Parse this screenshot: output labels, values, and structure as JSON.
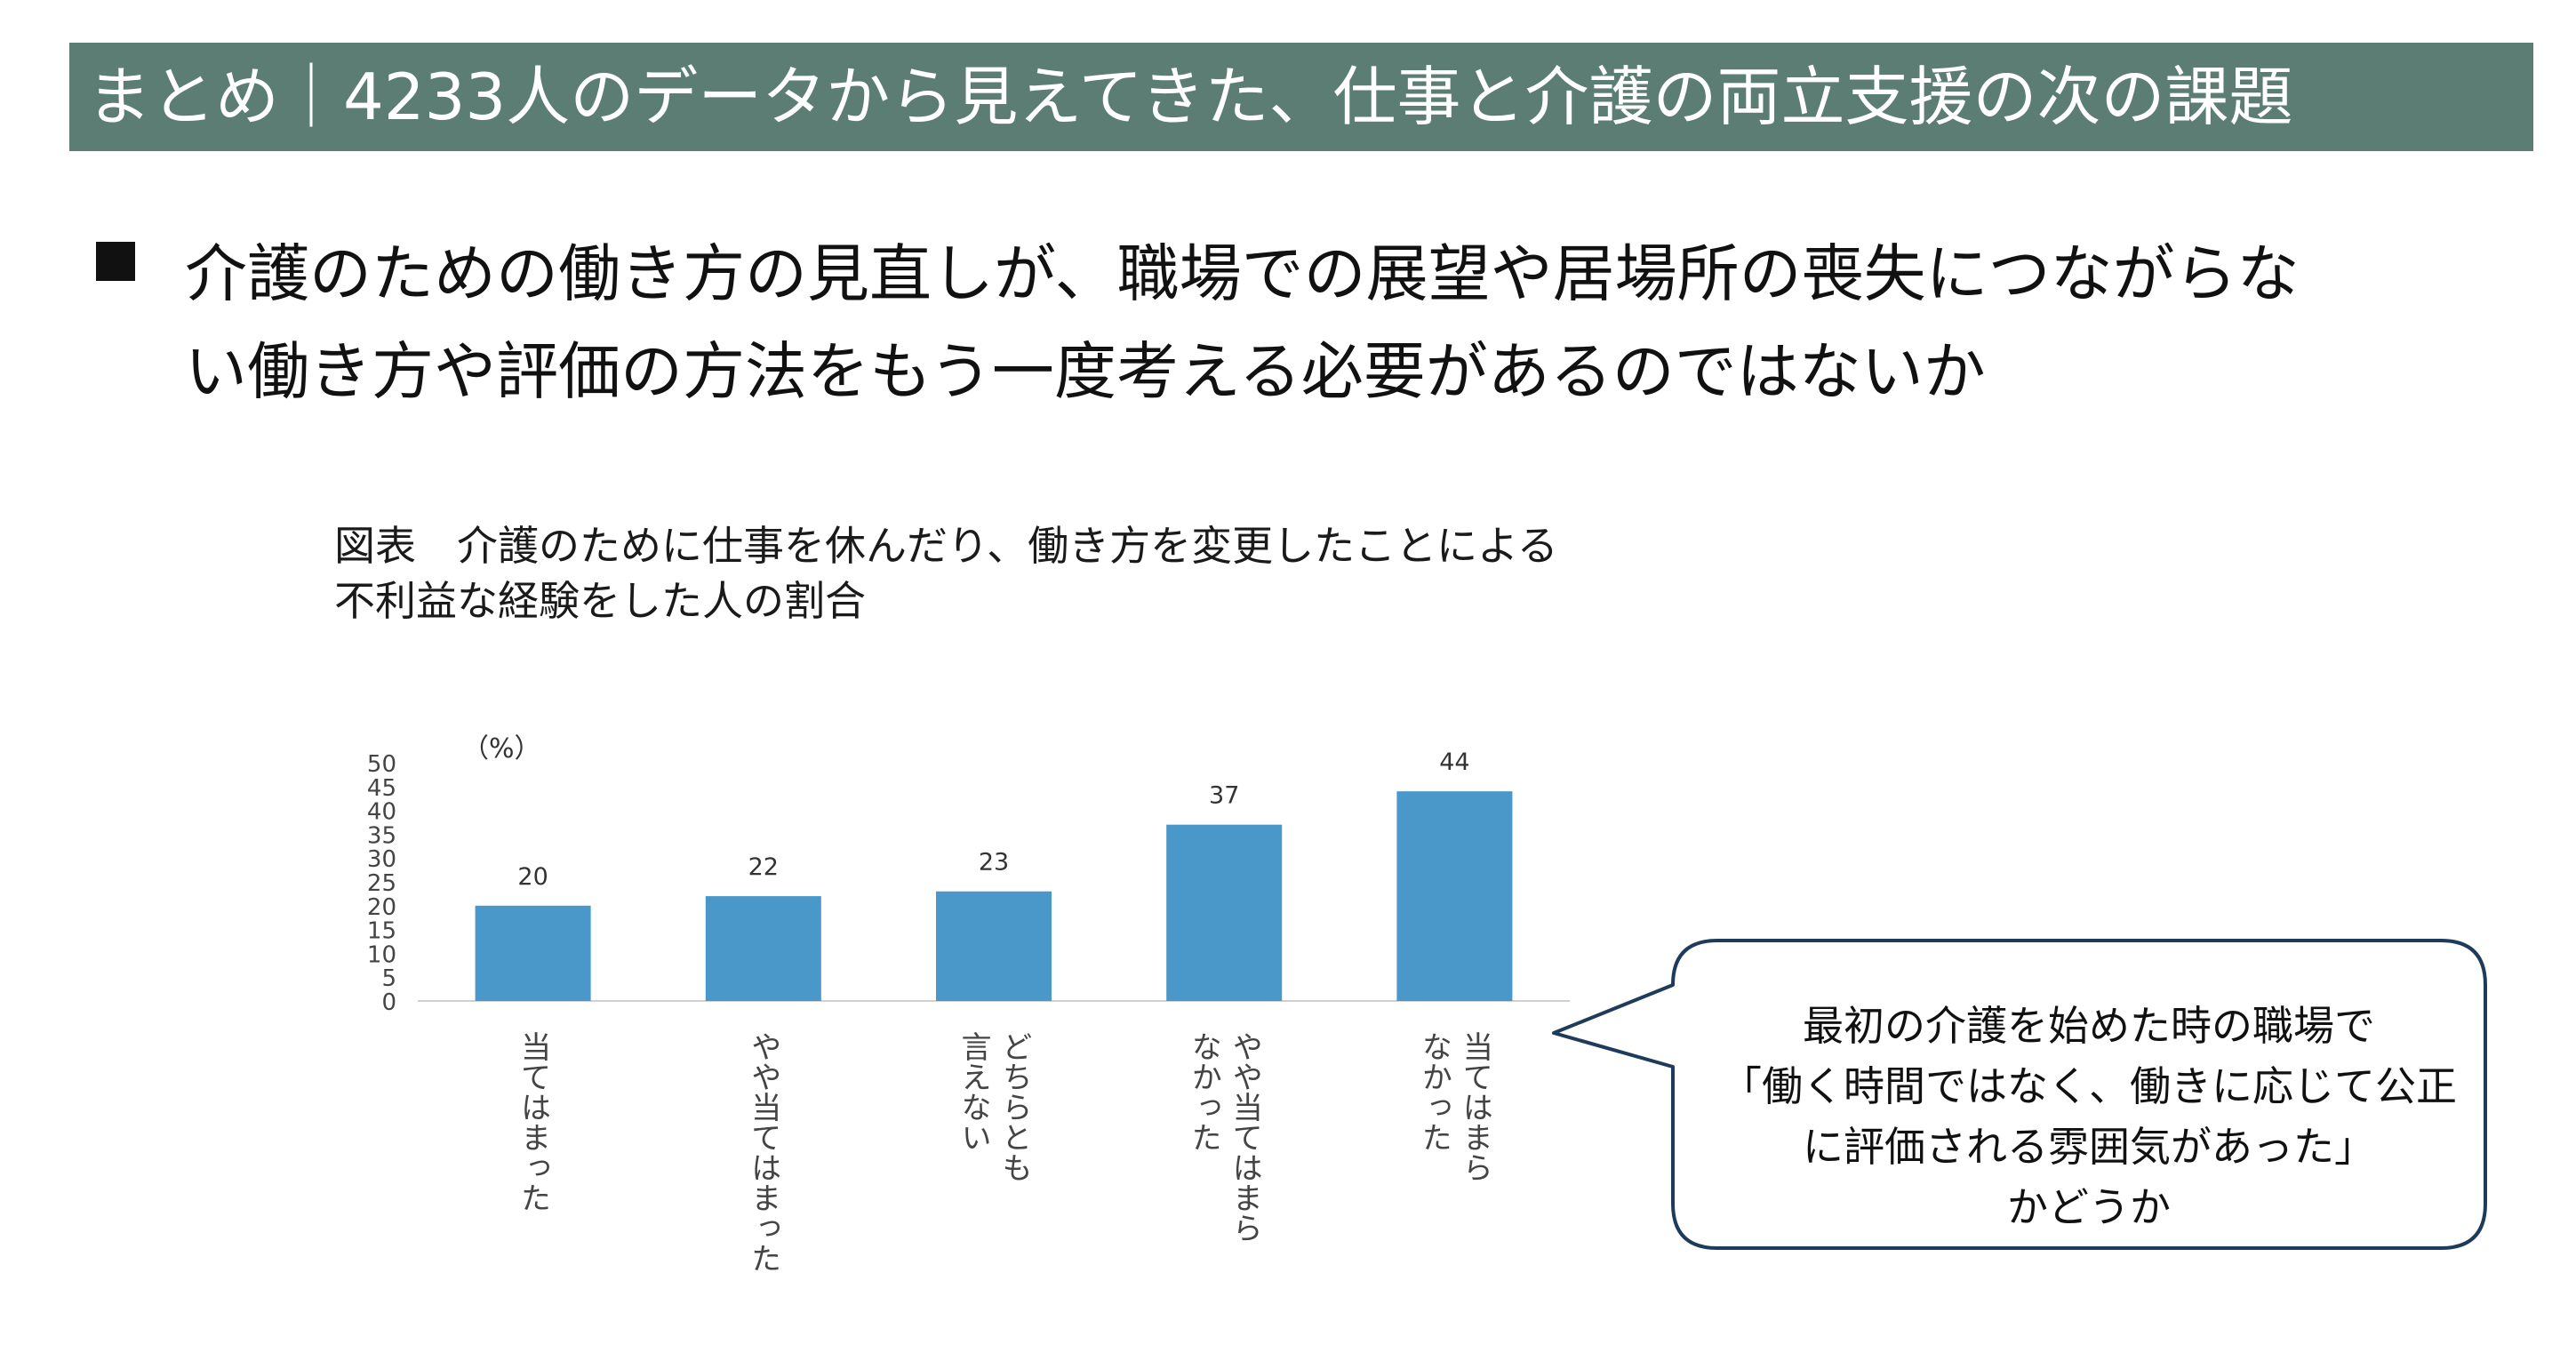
{
  "header": {
    "title": "まとめ｜4233人のデータから見えてきた、仕事と介護の両立支援の次の課題"
  },
  "headline": {
    "line1": "介護のための働き方の見直しが、職場での展望や居場所の喪失につながらな",
    "line2": "い働き方や評価の方法をもう一度考える必要があるのではないか"
  },
  "figure": {
    "title_line1": "図表　介護のために仕事を休んだり、働き方を変更したことによる",
    "title_line2": "不利益な経験をした人の割合"
  },
  "chart_data": {
    "type": "bar",
    "ylabel": "（%）",
    "ylim": [
      0,
      50
    ],
    "yticks": [
      0,
      5,
      10,
      15,
      20,
      25,
      30,
      35,
      40,
      45,
      50
    ],
    "categories": [
      [
        "当てはまった"
      ],
      [
        "やや当てはまった"
      ],
      [
        "どちらとも",
        "言えない"
      ],
      [
        "やや当てはまら",
        "なかった"
      ],
      [
        "当てはまら",
        "なかった"
      ]
    ],
    "values": [
      20,
      22,
      23,
      37,
      44
    ],
    "bar_color": "#4a97c9"
  },
  "callout": {
    "line1": "最初の介護を始めた時の職場で",
    "line2": "「働く時間ではなく、働きに応じて公正",
    "line3": "に評価される雰囲気があった」",
    "line4": "かどうか"
  }
}
